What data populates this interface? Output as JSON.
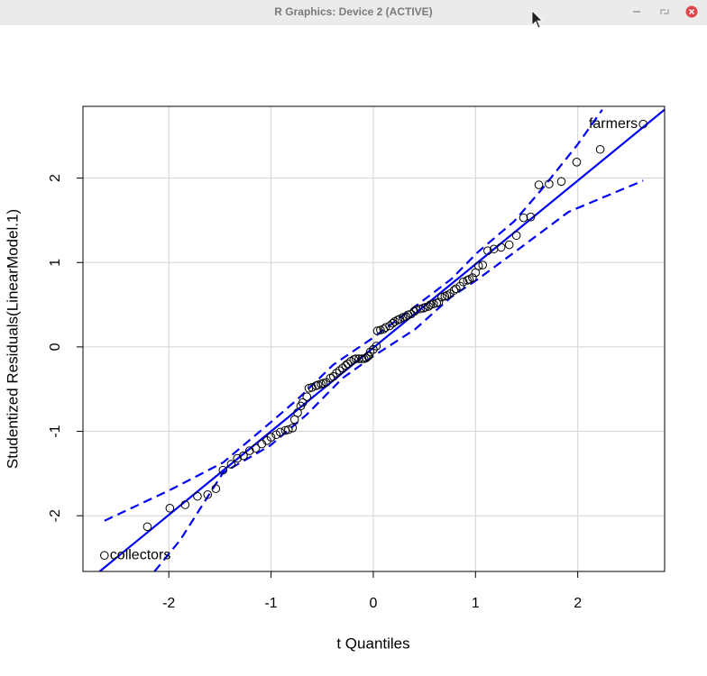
{
  "window_title": "R Graphics: Device 2 (ACTIVE)",
  "chart_data": {
    "type": "qq",
    "xlabel": "t Quantiles",
    "ylabel": "Studentized Residuals(LinearModel.1)",
    "xlim": [
      -2.84,
      2.85
    ],
    "ylim": [
      -2.66,
      2.85
    ],
    "xticks": [
      -2,
      -1,
      0,
      1,
      2
    ],
    "yticks": [
      -2,
      -1,
      0,
      1,
      2
    ],
    "grid": true,
    "points": {
      "color": "#000000",
      "x": [
        -2.63,
        -2.21,
        -1.99,
        -1.84,
        -1.72,
        -1.62,
        -1.54,
        -1.47,
        -1.39,
        -1.33,
        -1.27,
        -1.21,
        -1.15,
        -1.09,
        -1.04,
        -1.0,
        -0.95,
        -0.91,
        -0.86,
        -0.83,
        -0.79,
        -0.77,
        -0.74,
        -0.71,
        -0.69,
        -0.65,
        -0.63,
        -0.6,
        -0.56,
        -0.54,
        -0.51,
        -0.49,
        -0.46,
        -0.42,
        -0.39,
        -0.36,
        -0.33,
        -0.3,
        -0.27,
        -0.25,
        -0.22,
        -0.19,
        -0.17,
        -0.14,
        -0.11,
        -0.09,
        -0.07,
        -0.05,
        -0.03,
        0,
        0.03,
        0.04,
        0.07,
        0.1,
        0.12,
        0.16,
        0.19,
        0.21,
        0.24,
        0.26,
        0.29,
        0.32,
        0.34,
        0.37,
        0.4,
        0.42,
        0.46,
        0.49,
        0.51,
        0.54,
        0.56,
        0.59,
        0.62,
        0.64,
        0.67,
        0.7,
        0.72,
        0.75,
        0.79,
        0.81,
        0.85,
        0.88,
        0.92,
        0.94,
        0.97,
        1.0,
        1.03,
        1.07,
        1.12,
        1.18,
        1.25,
        1.33,
        1.4,
        1.47,
        1.54,
        1.62,
        1.72,
        1.84,
        1.99,
        2.22,
        2.64
      ],
      "y": [
        -2.47,
        -2.13,
        -1.91,
        -1.87,
        -1.77,
        -1.75,
        -1.68,
        -1.46,
        -1.39,
        -1.32,
        -1.29,
        -1.23,
        -1.2,
        -1.15,
        -1.11,
        -1.07,
        -1.04,
        -1.01,
        -0.99,
        -0.98,
        -0.96,
        -0.86,
        -0.78,
        -0.7,
        -0.66,
        -0.59,
        -0.49,
        -0.48,
        -0.46,
        -0.45,
        -0.44,
        -0.43,
        -0.42,
        -0.37,
        -0.35,
        -0.31,
        -0.28,
        -0.25,
        -0.22,
        -0.2,
        -0.17,
        -0.15,
        -0.14,
        -0.14,
        -0.14,
        -0.14,
        -0.13,
        -0.11,
        -0.06,
        -0.03,
        0.01,
        0.19,
        0.2,
        0.21,
        0.23,
        0.25,
        0.28,
        0.3,
        0.32,
        0.33,
        0.35,
        0.36,
        0.38,
        0.39,
        0.42,
        0.44,
        0.45,
        0.46,
        0.47,
        0.48,
        0.5,
        0.51,
        0.52,
        0.53,
        0.59,
        0.6,
        0.61,
        0.63,
        0.67,
        0.69,
        0.72,
        0.77,
        0.79,
        0.8,
        0.82,
        0.88,
        0.96,
        0.97,
        1.14,
        1.16,
        1.18,
        1.21,
        1.32,
        1.53,
        1.54,
        1.92,
        1.93,
        1.96,
        2.19,
        2.34,
        2.64
      ]
    },
    "fit_line": {
      "intercept": -0.01,
      "slope": 0.99,
      "color": "#0000ff"
    },
    "envelope": {
      "color": "#0000ff",
      "upper": {
        "x": [
          -2.63,
          -1.98,
          -1.47,
          -1.01,
          -0.74,
          -0.39,
          0,
          0.41,
          0.76,
          1.02,
          1.38,
          1.65,
          2.0,
          2.24
        ],
        "y": [
          -2.06,
          -1.69,
          -1.37,
          -0.9,
          -0.62,
          -0.21,
          0.11,
          0.48,
          0.8,
          1.12,
          1.49,
          1.87,
          2.4,
          2.81
        ]
      },
      "lower": {
        "x": [
          -2.14,
          -1.89,
          -1.47,
          -1.01,
          -0.65,
          -0.3,
          0,
          0.41,
          0.76,
          1.02,
          1.38,
          1.91,
          2.64
        ],
        "y": [
          -2.66,
          -2.29,
          -1.49,
          -1.17,
          -0.8,
          -0.37,
          -0.11,
          0.21,
          0.59,
          0.8,
          1.12,
          1.6,
          1.97
        ]
      }
    },
    "annotations": [
      "collectors",
      "farmers"
    ]
  }
}
